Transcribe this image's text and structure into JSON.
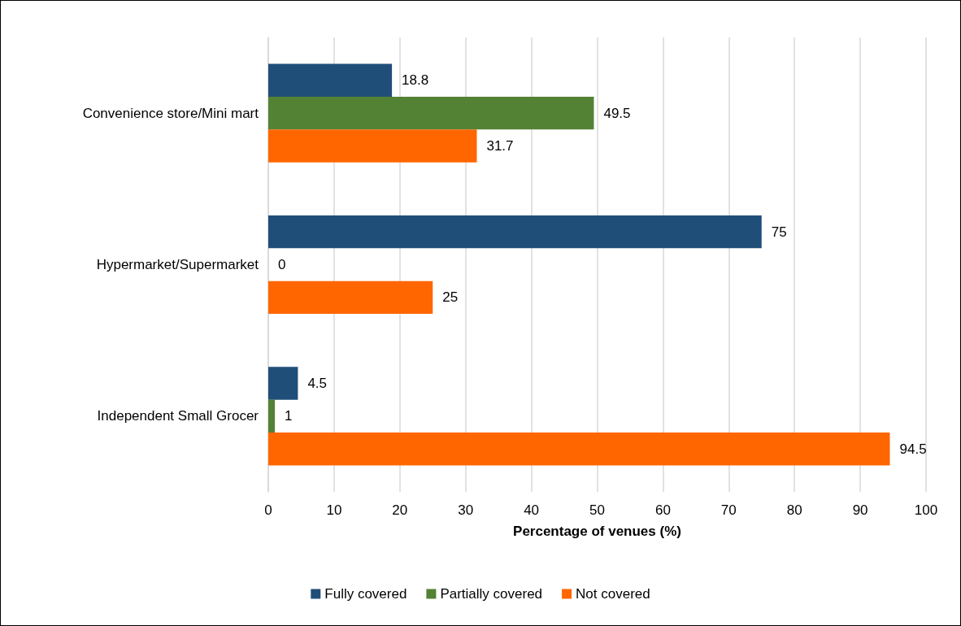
{
  "chart_data": {
    "type": "bar",
    "orientation": "horizontal",
    "categories": [
      "Convenience store/Mini mart",
      "Hypermarket/Supermarket",
      "Independent Small Grocer"
    ],
    "series": [
      {
        "name": "Fully covered",
        "color": "#1f4e79",
        "values": [
          18.8,
          75,
          4.5
        ]
      },
      {
        "name": "Partially covered",
        "color": "#548235",
        "values": [
          49.5,
          0,
          1
        ]
      },
      {
        "name": "Not covered",
        "color": "#ff6600",
        "values": [
          31.7,
          25,
          94.5
        ]
      }
    ],
    "xlabel": "Percentage of venues (%)",
    "xlim": [
      0,
      100
    ],
    "xticks": [
      0,
      10,
      20,
      30,
      40,
      50,
      60,
      70,
      80,
      90,
      100
    ],
    "grid": "x",
    "legend": "bottom",
    "data_labels": true
  }
}
